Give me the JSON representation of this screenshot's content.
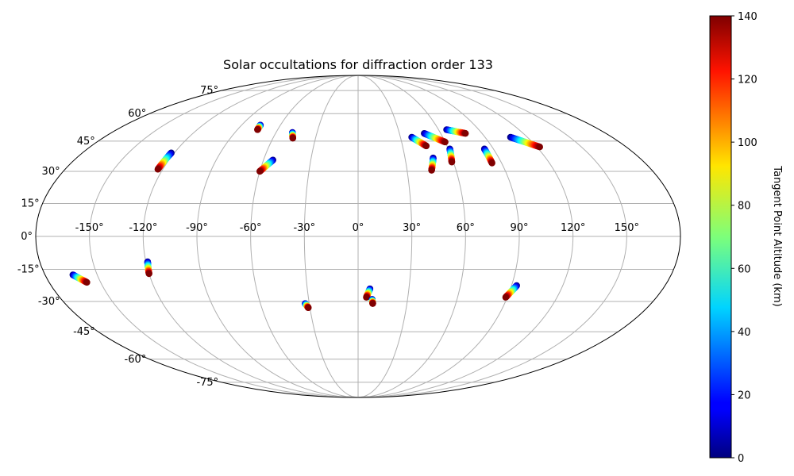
{
  "chart_data": {
    "type": "scatter",
    "projection": "mollweide",
    "title": "Solar occultations for diffraction order 133",
    "grid": true,
    "lon_tick_labels": [
      "-150°",
      "-120°",
      "-90°",
      "-60°",
      "-30°",
      "0°",
      "30°",
      "60°",
      "90°",
      "120°",
      "150°"
    ],
    "lat_tick_labels": [
      "75°",
      "60°",
      "45°",
      "30°",
      "15°",
      "0°",
      "-15°",
      "-30°",
      "-45°",
      "-60°",
      "-75°"
    ],
    "lon_ticks": [
      -150,
      -120,
      -90,
      -60,
      -30,
      0,
      30,
      60,
      90,
      120,
      150
    ],
    "lat_ticks": [
      75,
      60,
      45,
      30,
      15,
      0,
      -15,
      -30,
      -45,
      -60,
      -75
    ],
    "colorbar": {
      "label": "Tangent Point Altitude (km)",
      "range": [
        0,
        140
      ],
      "ticks": [
        0,
        20,
        40,
        60,
        80,
        100,
        120,
        140
      ],
      "tick_labels": [
        "0",
        "20",
        "40",
        "60",
        "80",
        "100",
        "120",
        "140"
      ],
      "colormap": "jet"
    },
    "series": [
      {
        "x": [
          -122.0,
          -123.0
        ],
        "y": [
          39.0,
          31.0
        ],
        "altitude": [
          0,
          140
        ]
      },
      {
        "x": [
          -75.5,
          -75.0
        ],
        "y": [
          53.5,
          51.0
        ],
        "altitude": [
          0,
          140
        ]
      },
      {
        "x": [
          -48.0,
          -46.0
        ],
        "y": [
          49.5,
          46.5
        ],
        "altitude": [
          0,
          140
        ]
      },
      {
        "x": [
          -54.0,
          -60.0
        ],
        "y": [
          35.5,
          30.0
        ],
        "altitude": [
          0,
          140
        ]
      },
      {
        "x": [
          38.0,
          46.0
        ],
        "y": [
          47.0,
          42.5
        ],
        "altitude": [
          0,
          140
        ]
      },
      {
        "x": [
          48.0,
          60.0
        ],
        "y": [
          49.0,
          44.5
        ],
        "altitude": [
          0,
          140
        ]
      },
      {
        "x": [
          66.0,
          78.0
        ],
        "y": [
          51.0,
          49.0
        ],
        "altitude": [
          0,
          140
        ]
      },
      {
        "x": [
          48.0,
          45.0
        ],
        "y": [
          36.5,
          30.5
        ],
        "altitude": [
          0,
          140
        ]
      },
      {
        "x": [
          61.0,
          59.0
        ],
        "y": [
          41.0,
          34.5
        ],
        "altitude": [
          0,
          140
        ]
      },
      {
        "x": [
          84.0,
          84.0
        ],
        "y": [
          41.0,
          34.0
        ],
        "altitude": [
          0,
          140
        ]
      },
      {
        "x": [
          108.0,
          122.0
        ],
        "y": [
          47.0,
          42.0
        ],
        "altitude": [
          0,
          140
        ]
      },
      {
        "x": [
          -164.0,
          -158.0
        ],
        "y": [
          -17.5,
          -21.0
        ],
        "altitude": [
          0,
          140
        ]
      },
      {
        "x": [
          -119.0,
          -120.0
        ],
        "y": [
          -11.5,
          -17.0
        ],
        "altitude": [
          0,
          140
        ]
      },
      {
        "x": [
          -32.5,
          -31.0
        ],
        "y": [
          -31.0,
          -33.0
        ],
        "altitude": [
          0,
          140
        ]
      },
      {
        "x": [
          7.0,
          5.0
        ],
        "y": [
          -24.0,
          -28.0
        ],
        "altitude": [
          0,
          140
        ]
      },
      {
        "x": [
          8.5,
          9.0
        ],
        "y": [
          -29.0,
          -31.0
        ],
        "altitude": [
          0,
          140
        ]
      },
      {
        "x": [
          93.0,
          89.0
        ],
        "y": [
          -22.5,
          -28.0
        ],
        "altitude": [
          0,
          140
        ]
      }
    ]
  }
}
